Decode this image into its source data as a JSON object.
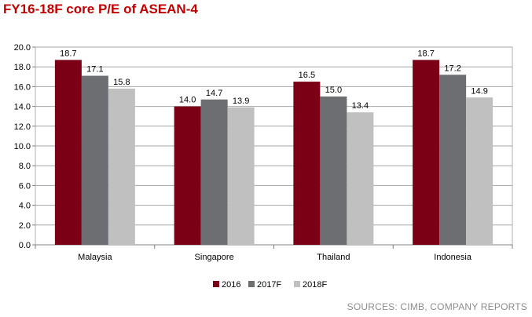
{
  "title": "FY16-18F core P/E of ASEAN-4",
  "source": "SOURCES: CIMB, COMPANY REPORTS",
  "chart_data": {
    "type": "bar",
    "title": "FY16-18F core P/E of ASEAN-4",
    "xlabel": "",
    "ylabel": "",
    "categories": [
      "Malaysia",
      "Singapore",
      "Thailand",
      "Indonesia"
    ],
    "series": [
      {
        "name": "2016",
        "color": "#7b0016",
        "values": [
          18.7,
          14.0,
          16.5,
          18.7
        ]
      },
      {
        "name": "2017F",
        "color": "#6d6e72",
        "values": [
          17.1,
          14.7,
          15.0,
          17.2
        ]
      },
      {
        "name": "2018F",
        "color": "#c0c0c0",
        "values": [
          15.8,
          13.9,
          13.4,
          14.9
        ]
      }
    ],
    "ylim": [
      0,
      20
    ],
    "yticks": [
      "0.0",
      "2.0",
      "4.0",
      "6.0",
      "8.0",
      "10.0",
      "12.0",
      "14.0",
      "16.0",
      "18.0",
      "20.0"
    ],
    "value_labels": [
      [
        "18.7",
        "17.1",
        "15.8"
      ],
      [
        "14.0",
        "14.7",
        "13.9"
      ],
      [
        "16.5",
        "15.0",
        "13.4"
      ],
      [
        "18.7",
        "17.2",
        "14.9"
      ]
    ],
    "grid": true,
    "legend": "bottom-center"
  }
}
